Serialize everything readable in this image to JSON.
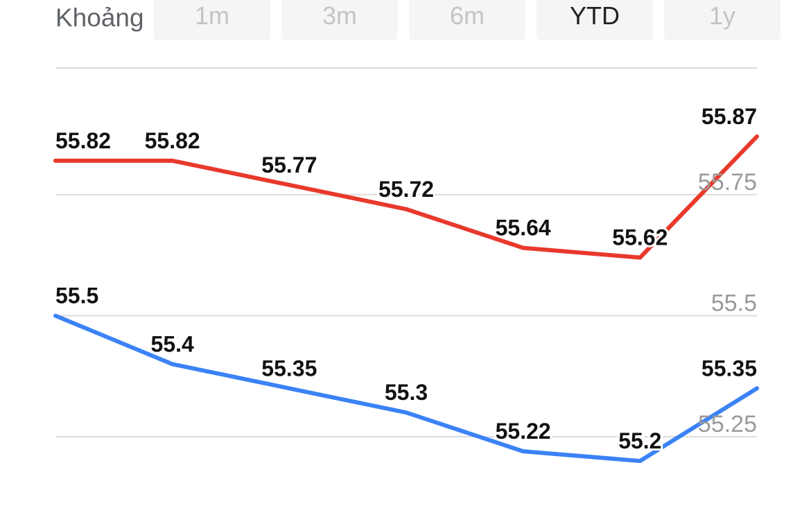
{
  "range_selector": {
    "label": "Khoảng",
    "options": [
      "1m",
      "3m",
      "6m",
      "YTD",
      "1y"
    ],
    "selected": "YTD"
  },
  "chart_data": {
    "type": "line",
    "title": "",
    "xlabel": "",
    "ylabel": "",
    "points": 7,
    "ylim": [
      55.15,
      55.9
    ],
    "y_ticks": [
      "55.75",
      "55.5",
      "55.25"
    ],
    "y_tick_values": [
      55.75,
      55.5,
      55.25
    ],
    "grid": true,
    "legend": "none",
    "series": [
      {
        "values": [
          55.82,
          55.82,
          55.77,
          55.72,
          55.64,
          55.62,
          55.87
        ],
        "labels": [
          "55.82",
          "55.82",
          "55.77",
          "55.72",
          "55.64",
          "55.62",
          "55.87"
        ],
        "color": "#e8392c"
      },
      {
        "values": [
          55.5,
          55.4,
          55.35,
          55.3,
          55.22,
          55.2,
          55.35
        ],
        "labels": [
          "55.5",
          "55.4",
          "55.35",
          "55.3",
          "55.22",
          "55.2",
          "55.35"
        ],
        "color": "#3b82f6"
      }
    ]
  }
}
